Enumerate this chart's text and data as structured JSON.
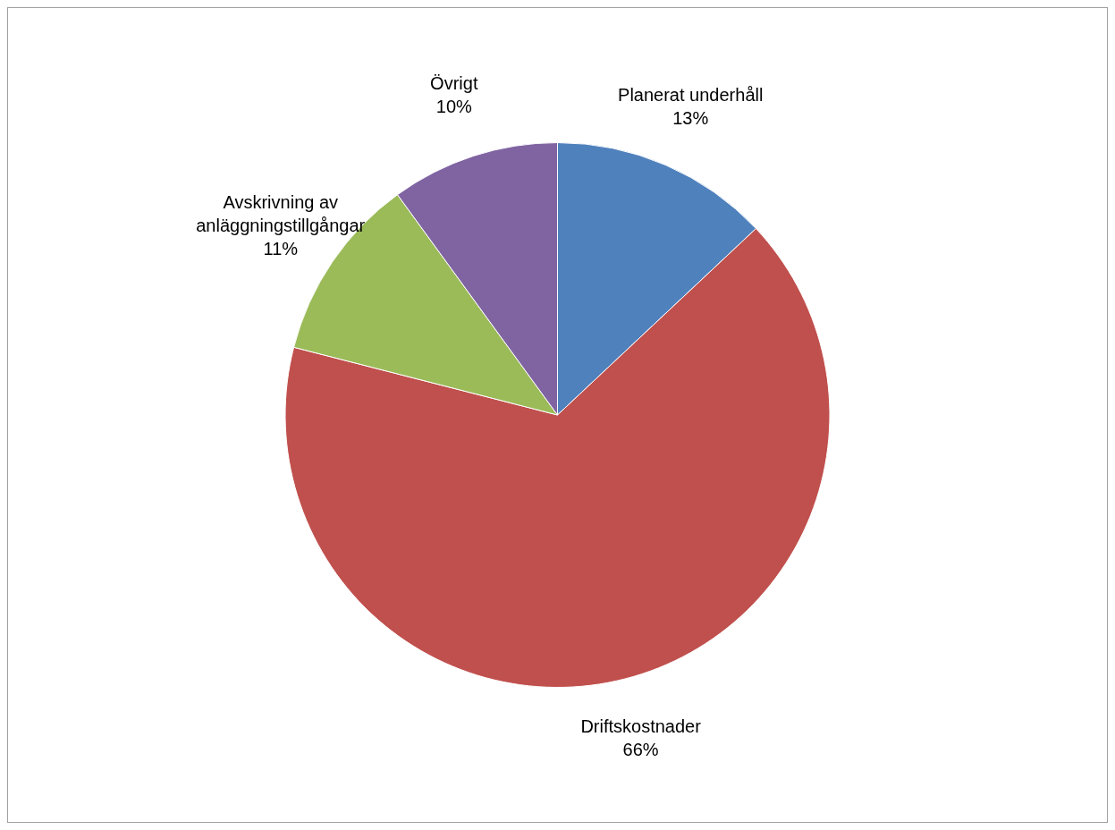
{
  "chart_data": {
    "type": "pie",
    "categories": [
      "Planerat underhåll",
      "Driftskostnader",
      "Avskrivning av anläggningstillgångar",
      "Övrigt"
    ],
    "values": [
      13,
      66,
      11,
      10
    ],
    "colors": [
      "#4f81bd",
      "#c0504d",
      "#9bbb59",
      "#8064a2"
    ],
    "value_labels": [
      "13%",
      "66%",
      "11%",
      "10%"
    ],
    "legend": false
  }
}
